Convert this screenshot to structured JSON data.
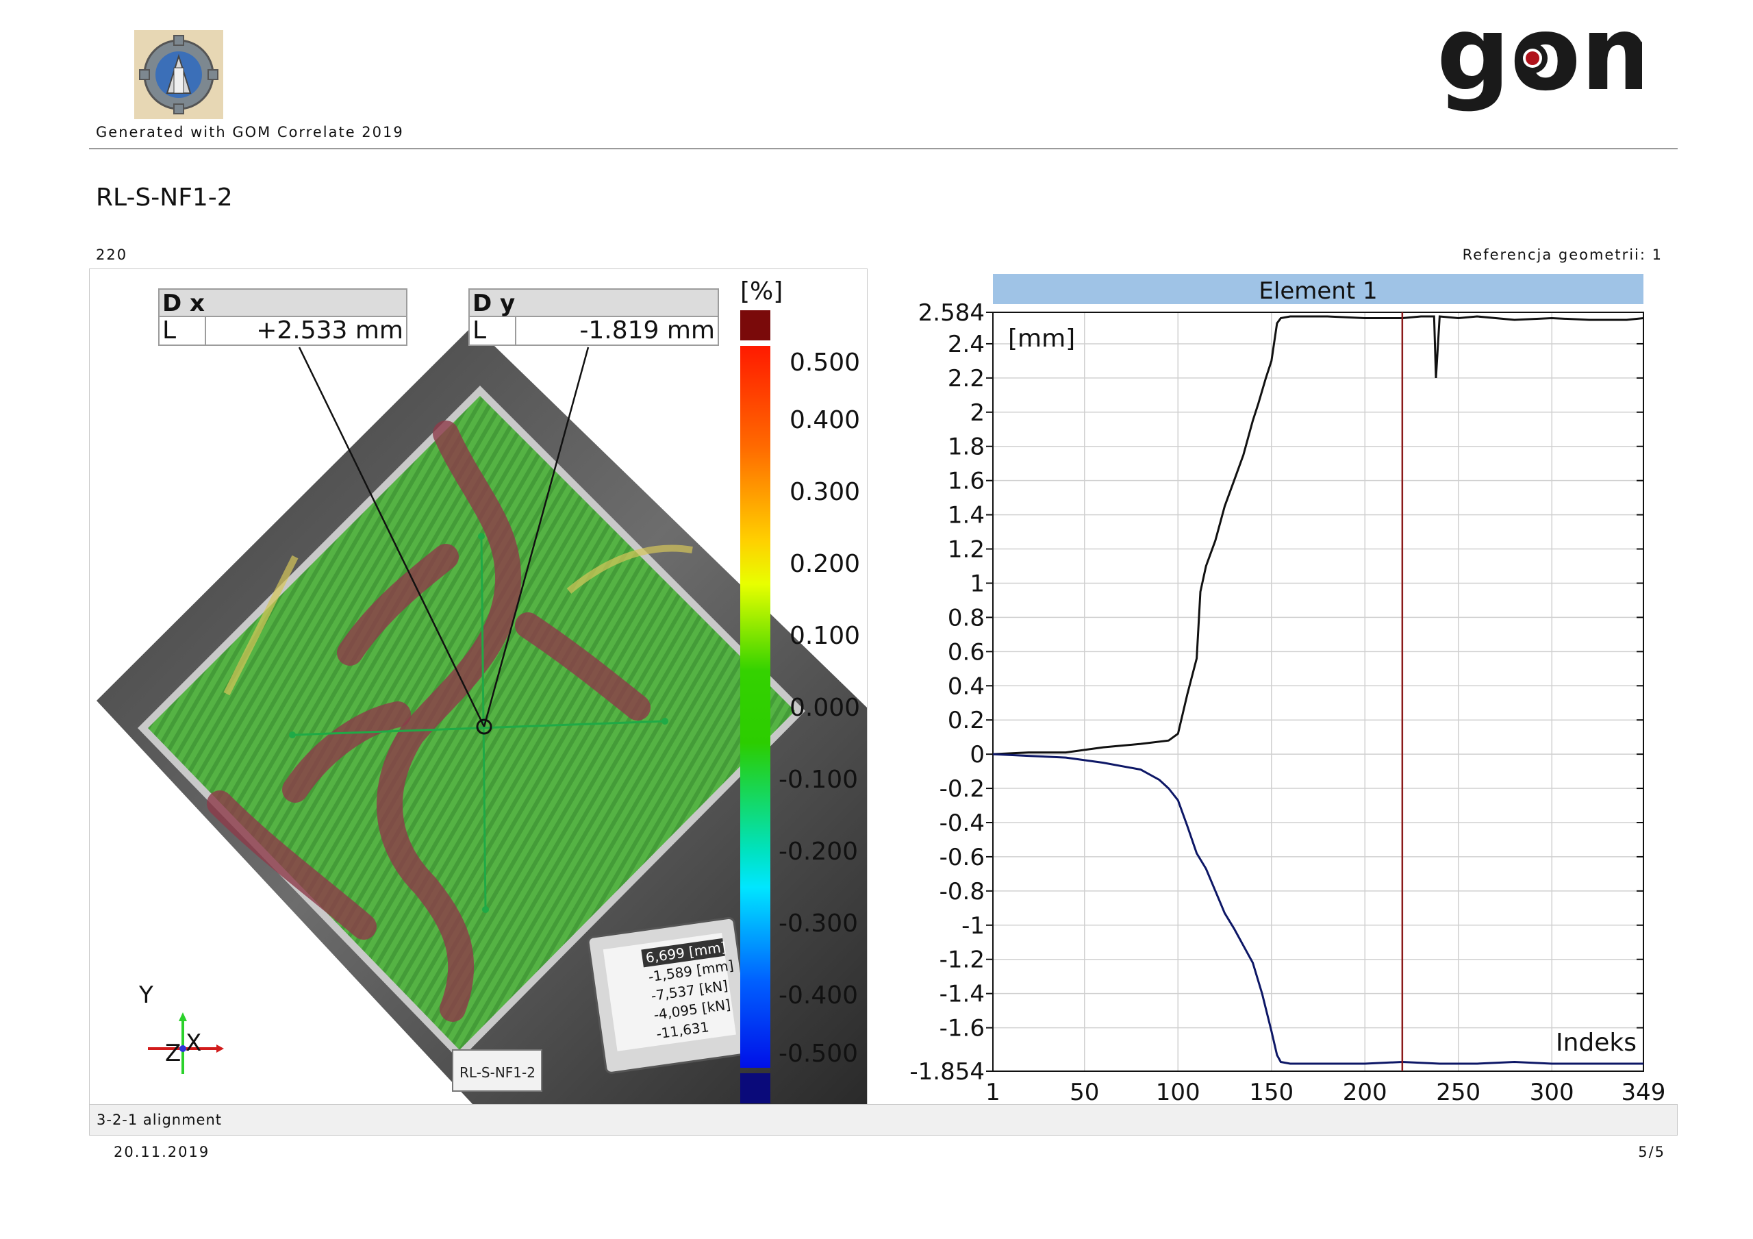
{
  "header": {
    "generated_with": "Generated with GOM Correlate 2019",
    "brand": "gom"
  },
  "page_title": "RL-S-NF1-2",
  "frame_number": "220",
  "geometry_reference": "Referencja geometrii: 1",
  "image_panel": {
    "label_dx": {
      "title": "D x",
      "row_name": "L",
      "value": "+2.533 mm"
    },
    "label_dy": {
      "title": "D y",
      "row_name": "L",
      "value": "-1.819 mm"
    },
    "colorbar": {
      "unit": "[%]",
      "ticks": [
        "0.500",
        "0.400",
        "0.300",
        "0.200",
        "0.100",
        "0.000",
        "-0.100",
        "-0.200",
        "-0.300",
        "-0.400",
        "-0.500"
      ]
    },
    "axes": {
      "x": "X",
      "y": "Y",
      "z": "Z"
    },
    "sample_label": "RL-S-NF1-2",
    "monitor_readout": [
      "6,699 [mm]",
      "-1,589 [mm]",
      "-7,537 [kN]",
      "-4,095 [kN]",
      "-11,631"
    ],
    "colors": {
      "strain_green": "#4caf3a",
      "strain_red": "#8b2a3a",
      "point_line": "#1faa46"
    }
  },
  "footer": {
    "alignment": "3-2-1 alignment",
    "date": "20.11.2019",
    "page": "5/5"
  },
  "chart_data": {
    "type": "line",
    "title": "Element 1",
    "ylabel": "[mm]",
    "xlabel": "Indeks",
    "xlim": [
      1,
      349
    ],
    "ylim": [
      -1.854,
      2.584
    ],
    "x_ticks": [
      "1",
      "50",
      "100",
      "150",
      "200",
      "250",
      "300",
      "349"
    ],
    "y_ticks": [
      "2.584",
      "2.4",
      "2.2",
      "2",
      "1.8",
      "1.6",
      "1.4",
      "1.2",
      "1",
      "0.8",
      "0.6",
      "0.4",
      "0.2",
      "0",
      "-0.2",
      "-0.4",
      "-0.6",
      "-0.8",
      "-1",
      "-1.2",
      "-1.4",
      "-1.6",
      "-1.854"
    ],
    "grid": true,
    "current_index": 220,
    "colors": {
      "dx": "#111111",
      "dy": "#0d1766",
      "marker": "#8b1a1a",
      "title_bar": "#9fc3e6"
    },
    "series": [
      {
        "name": "D x",
        "x": [
          1,
          20,
          40,
          60,
          80,
          95,
          100,
          105,
          110,
          112,
          115,
          120,
          125,
          130,
          135,
          140,
          143,
          147,
          150,
          153,
          155,
          160,
          180,
          200,
          220,
          230,
          237,
          238,
          240,
          250,
          260,
          280,
          300,
          320,
          340,
          349
        ],
        "values": [
          0.0,
          0.01,
          0.01,
          0.04,
          0.06,
          0.08,
          0.12,
          0.35,
          0.56,
          0.95,
          1.1,
          1.25,
          1.45,
          1.6,
          1.75,
          1.95,
          2.05,
          2.2,
          2.3,
          2.52,
          2.55,
          2.56,
          2.56,
          2.55,
          2.55,
          2.56,
          2.56,
          2.2,
          2.56,
          2.55,
          2.56,
          2.54,
          2.55,
          2.54,
          2.54,
          2.55
        ]
      },
      {
        "name": "D y",
        "x": [
          1,
          20,
          40,
          60,
          80,
          90,
          95,
          100,
          105,
          110,
          115,
          120,
          125,
          130,
          135,
          140,
          145,
          150,
          153,
          155,
          160,
          180,
          200,
          220,
          240,
          260,
          280,
          300,
          320,
          340,
          349
        ],
        "values": [
          0.0,
          -0.01,
          -0.02,
          -0.05,
          -0.09,
          -0.15,
          -0.2,
          -0.27,
          -0.42,
          -0.58,
          -0.67,
          -0.8,
          -0.93,
          -1.02,
          -1.12,
          -1.22,
          -1.4,
          -1.62,
          -1.76,
          -1.8,
          -1.81,
          -1.81,
          -1.81,
          -1.8,
          -1.81,
          -1.81,
          -1.8,
          -1.81,
          -1.81,
          -1.81,
          -1.81
        ]
      }
    ]
  }
}
